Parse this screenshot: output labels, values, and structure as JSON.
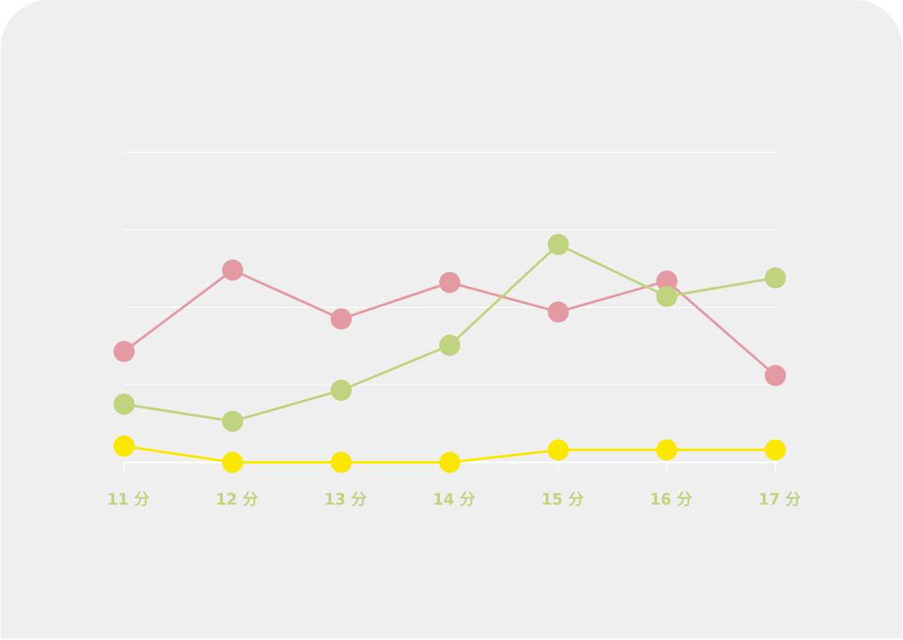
{
  "colors": {
    "background": "#efefef",
    "gridline": "#ffffff",
    "tick_label": "#bfd47e"
  },
  "chart_data": {
    "type": "line",
    "title": "",
    "xlabel": "",
    "ylabel": "",
    "categories": [
      "11 分",
      "12 分",
      "13 分",
      "14 分",
      "15 分",
      "16 分",
      "17 分"
    ],
    "ylim": [
      0,
      4
    ],
    "grid": true,
    "legend": "none",
    "series": [
      {
        "color": "#e39aa3",
        "values": [
          1.43,
          2.48,
          1.85,
          2.32,
          1.94,
          2.34,
          1.12
        ]
      },
      {
        "color": "#bfd47e",
        "values": [
          0.75,
          0.53,
          0.93,
          1.51,
          2.81,
          2.14,
          2.38
        ]
      },
      {
        "color": "#fbe800",
        "values": [
          0.21,
          0.0,
          0.0,
          0.0,
          0.16,
          0.16,
          0.16
        ]
      }
    ]
  }
}
